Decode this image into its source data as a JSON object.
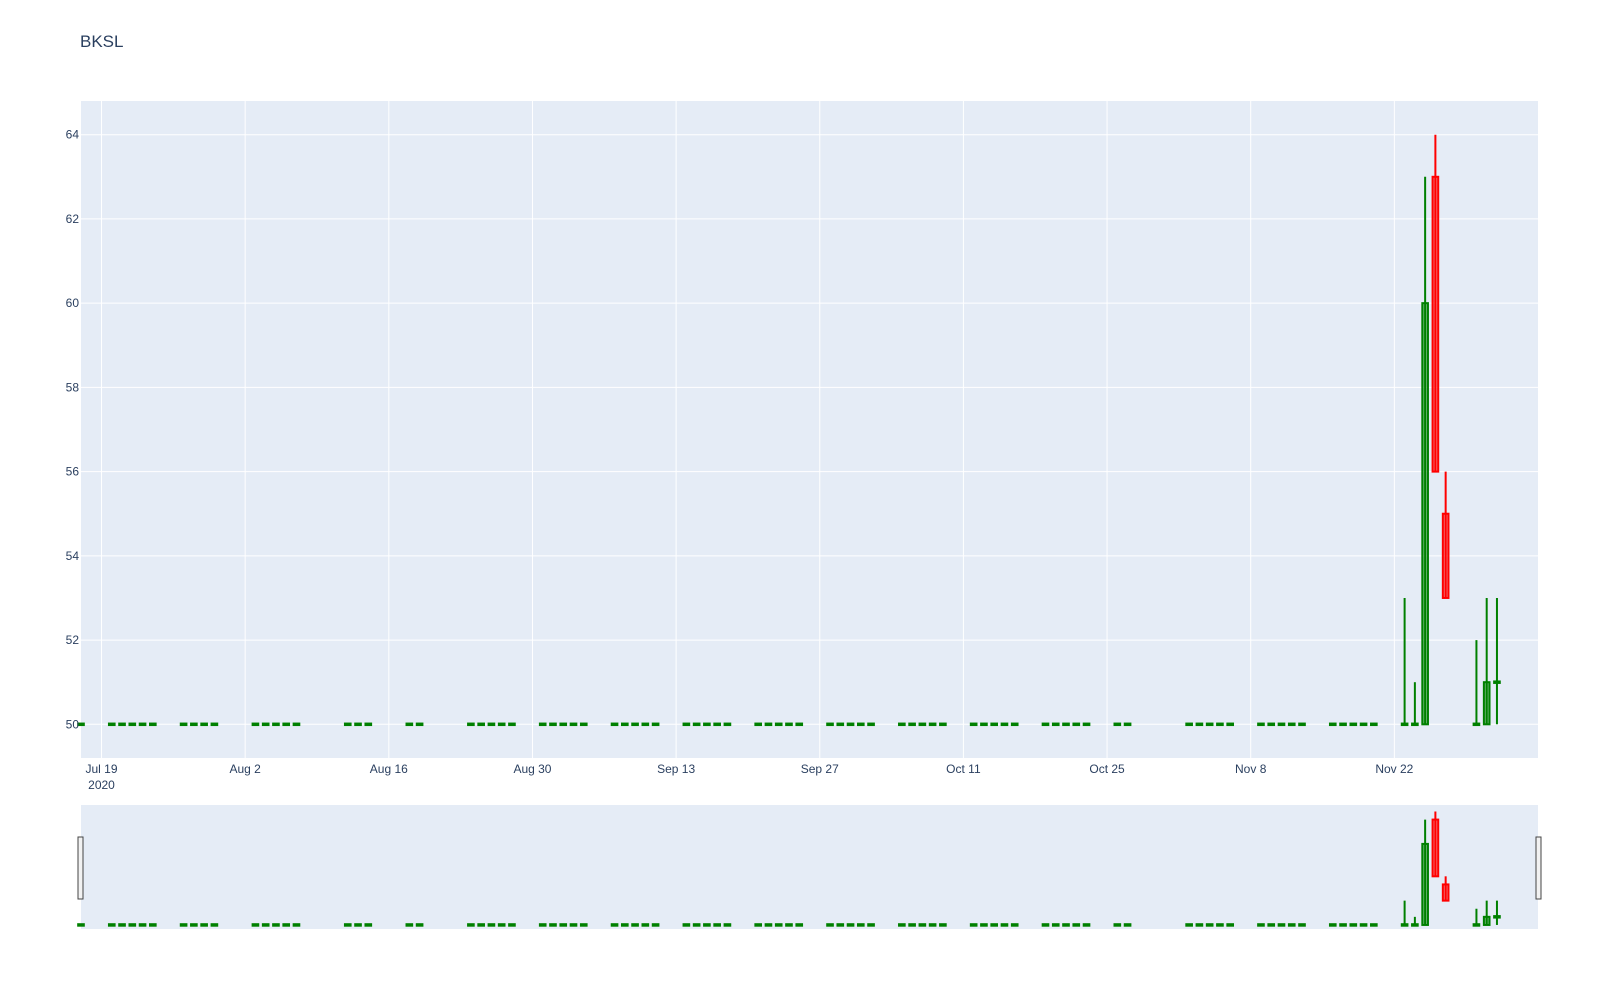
{
  "title": "BKSL",
  "colors": {
    "plot_bg": "#e5ecf6",
    "grid": "#ffffff",
    "increasing": "#008000",
    "decreasing": "#ff0000",
    "text": "#2a3f5f"
  },
  "chart_data": {
    "type": "candlestick",
    "title": "BKSL",
    "xlabel": "",
    "ylabel": "",
    "xrange": [
      "2020-07-17",
      "2020-12-06"
    ],
    "yrange": [
      49.2,
      64.8
    ],
    "x_ticks": [
      {
        "date": "2020-07-19",
        "label": "Jul 19",
        "year": "2020"
      },
      {
        "date": "2020-08-02",
        "label": "Aug 2"
      },
      {
        "date": "2020-08-16",
        "label": "Aug 16"
      },
      {
        "date": "2020-08-30",
        "label": "Aug 30"
      },
      {
        "date": "2020-09-13",
        "label": "Sep 13"
      },
      {
        "date": "2020-09-27",
        "label": "Sep 27"
      },
      {
        "date": "2020-10-11",
        "label": "Oct 11"
      },
      {
        "date": "2020-10-25",
        "label": "Oct 25"
      },
      {
        "date": "2020-11-08",
        "label": "Nov 8"
      },
      {
        "date": "2020-11-22",
        "label": "Nov 22"
      }
    ],
    "y_ticks": [
      "50",
      "52",
      "54",
      "56",
      "58",
      "60",
      "62",
      "64"
    ],
    "flat_days": [
      "2020-07-17",
      "2020-07-20",
      "2020-07-21",
      "2020-07-22",
      "2020-07-23",
      "2020-07-24",
      "2020-07-27",
      "2020-07-28",
      "2020-07-29",
      "2020-07-30",
      "2020-08-03",
      "2020-08-04",
      "2020-08-05",
      "2020-08-06",
      "2020-08-07",
      "2020-08-12",
      "2020-08-13",
      "2020-08-14",
      "2020-08-18",
      "2020-08-19",
      "2020-08-24",
      "2020-08-25",
      "2020-08-26",
      "2020-08-27",
      "2020-08-28",
      "2020-08-31",
      "2020-09-01",
      "2020-09-02",
      "2020-09-03",
      "2020-09-04",
      "2020-09-07",
      "2020-09-08",
      "2020-09-09",
      "2020-09-10",
      "2020-09-11",
      "2020-09-14",
      "2020-09-15",
      "2020-09-16",
      "2020-09-17",
      "2020-09-18",
      "2020-09-21",
      "2020-09-22",
      "2020-09-23",
      "2020-09-24",
      "2020-09-25",
      "2020-09-28",
      "2020-09-29",
      "2020-09-30",
      "2020-10-01",
      "2020-10-02",
      "2020-10-05",
      "2020-10-06",
      "2020-10-07",
      "2020-10-08",
      "2020-10-09",
      "2020-10-12",
      "2020-10-13",
      "2020-10-14",
      "2020-10-15",
      "2020-10-16",
      "2020-10-19",
      "2020-10-20",
      "2020-10-21",
      "2020-10-22",
      "2020-10-23",
      "2020-10-26",
      "2020-10-27",
      "2020-11-02",
      "2020-11-03",
      "2020-11-04",
      "2020-11-05",
      "2020-11-06",
      "2020-11-09",
      "2020-11-10",
      "2020-11-11",
      "2020-11-12",
      "2020-11-13",
      "2020-11-16",
      "2020-11-17",
      "2020-11-18",
      "2020-11-19",
      "2020-11-20"
    ],
    "flat_value": 50,
    "candles": [
      {
        "date": "2020-11-23",
        "open": 50,
        "high": 53,
        "low": 50,
        "close": 50
      },
      {
        "date": "2020-11-24",
        "open": 50,
        "high": 51,
        "low": 50,
        "close": 50
      },
      {
        "date": "2020-11-25",
        "open": 50,
        "high": 63,
        "low": 50,
        "close": 60
      },
      {
        "date": "2020-11-26",
        "open": 63,
        "high": 64,
        "low": 56,
        "close": 56
      },
      {
        "date": "2020-11-27",
        "open": 55,
        "high": 56,
        "low": 53,
        "close": 53
      },
      {
        "date": "2020-11-30",
        "open": 50,
        "high": 52,
        "low": 50,
        "close": 50
      },
      {
        "date": "2020-12-01",
        "open": 50,
        "high": 53,
        "low": 50,
        "close": 51
      },
      {
        "date": "2020-12-02",
        "open": 51,
        "high": 53,
        "low": 50,
        "close": 51
      }
    ]
  }
}
